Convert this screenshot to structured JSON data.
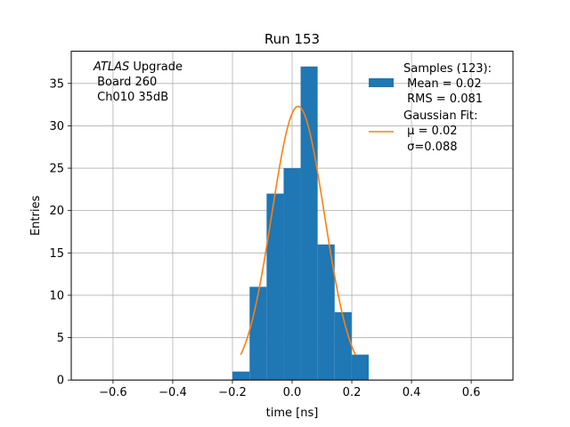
{
  "chart_data": {
    "type": "bar",
    "title": "Run 153",
    "xlabel": "time [ns]",
    "ylabel": "Entries",
    "xlim": [
      -0.74,
      0.74
    ],
    "ylim": [
      0,
      38.8
    ],
    "grid": true,
    "xticks": [
      -0.6,
      -0.4,
      -0.2,
      0,
      0.2,
      0.4,
      0.6
    ],
    "xtick_labels": [
      "−0.6",
      "−0.4",
      "−0.2",
      "0.0",
      "0.2",
      "0.4",
      "0.6"
    ],
    "yticks": [
      0,
      5,
      10,
      15,
      20,
      25,
      30,
      35
    ],
    "ytick_labels": [
      "0",
      "5",
      "10",
      "15",
      "20",
      "25",
      "30",
      "35"
    ],
    "bin_edges": [
      -0.2,
      -0.1425,
      -0.0855,
      -0.0285,
      0.0285,
      0.0855,
      0.1425,
      0.1995,
      0.2565
    ],
    "bins": [
      {
        "x0": -0.2,
        "x1": -0.1425,
        "count": 1
      },
      {
        "x0": -0.1425,
        "x1": -0.0855,
        "count": 11
      },
      {
        "x0": -0.0855,
        "x1": -0.0285,
        "count": 22
      },
      {
        "x0": -0.0285,
        "x1": 0.0285,
        "count": 25
      },
      {
        "x0": 0.0285,
        "x1": 0.0855,
        "count": 37
      },
      {
        "x0": 0.0855,
        "x1": 0.1425,
        "count": 16
      },
      {
        "x0": 0.1425,
        "x1": 0.1995,
        "count": 8
      },
      {
        "x0": 0.1995,
        "x1": 0.2565,
        "count": 3
      }
    ],
    "fit": {
      "type": "gaussian",
      "amplitude": 32.3,
      "mu": 0.02,
      "sigma": 0.088,
      "x_range": [
        -0.172,
        0.212
      ]
    },
    "series": [
      {
        "name": "Samples (123):",
        "sublines": [
          " Mean = 0.02",
          " RMS = 0.081"
        ],
        "color": "#1f77b4",
        "kind": "bar"
      },
      {
        "name": "Gaussian Fit:",
        "sublines": [
          " μ = 0.02",
          " σ=0.088"
        ],
        "color": "#ff7f0e",
        "kind": "line"
      }
    ],
    "legend_position": "top-right",
    "annotation": {
      "italic": "ATLAS",
      "rest": " Upgrade",
      "lines": [
        " Board 260",
        " Ch010 35dB"
      ]
    }
  }
}
